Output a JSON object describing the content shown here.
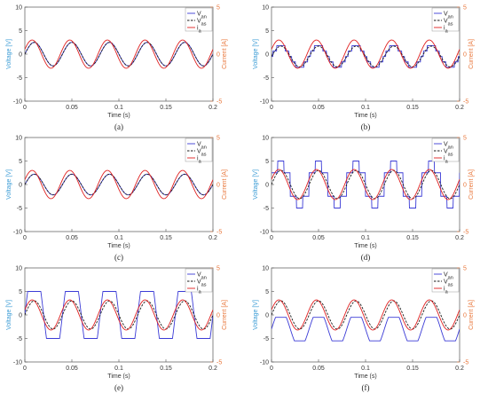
{
  "colors": {
    "voltage_axis": "#3a9bd5",
    "current_axis": "#e8763a",
    "van": "#3b3bd6",
    "vas": "#1a1a1a",
    "ia": "#e02020",
    "frame": "#555555"
  },
  "chart_data": [
    {
      "type": "line",
      "caption": "(a)",
      "xlabel": "Time (s)",
      "ylabel": "Voltage [V]",
      "y2label": "Current [A]",
      "xlim": [
        0,
        0.2
      ],
      "ylim": [
        -10,
        10
      ],
      "y2lim": [
        -5,
        5
      ],
      "xticks": [
        "0",
        "0.05",
        "0.1",
        "0.15",
        "0.2"
      ],
      "yticks": [
        "10",
        "5",
        "0",
        "-5",
        "-10"
      ],
      "y2ticks": [
        "5",
        "0",
        "-5"
      ],
      "legend": [
        "V_an",
        "V_as",
        "i_a"
      ],
      "legend_position": "top-right",
      "series": [
        {
          "name": "V_an",
          "frequency_hz": 25,
          "waveform": "sine",
          "amplitude": 2.5,
          "offset": 0,
          "phase_deg": 0
        },
        {
          "name": "V_as",
          "frequency_hz": 25,
          "waveform": "sine",
          "amplitude": 2.5,
          "offset": 0,
          "phase_deg": 0
        },
        {
          "name": "i_a",
          "axis": "right",
          "frequency_hz": 25,
          "waveform": "sine",
          "amplitude": 1.5,
          "offset": 0,
          "phase_deg": 20
        }
      ]
    },
    {
      "type": "line",
      "caption": "(b)",
      "xlabel": "Time (s)",
      "ylabel": "Voltage [V]",
      "y2label": "Current [A]",
      "xlim": [
        0,
        0.2
      ],
      "ylim": [
        -10,
        10
      ],
      "y2lim": [
        -5,
        5
      ],
      "xticks": [
        "0",
        "0.05",
        "0.1",
        "0.15",
        "0.2"
      ],
      "yticks": [
        "10",
        "5",
        "0",
        "-5",
        "-10"
      ],
      "y2ticks": [
        "5",
        "0",
        "-5"
      ],
      "legend": [
        "V_an",
        "V_as",
        "i_a"
      ],
      "legend_position": "top-right",
      "series": [
        {
          "name": "V_an",
          "frequency_hz": 25,
          "waveform": "stepped",
          "amplitude": 2.3,
          "offset": -0.5,
          "phase_deg": 0
        },
        {
          "name": "V_as",
          "frequency_hz": 25,
          "waveform": "sine",
          "amplitude": 2.2,
          "offset": -0.5,
          "phase_deg": 0
        },
        {
          "name": "i_a",
          "axis": "right",
          "frequency_hz": 25,
          "waveform": "sine",
          "amplitude": 1.5,
          "offset": 0,
          "phase_deg": 20
        }
      ]
    },
    {
      "type": "line",
      "caption": "(c)",
      "xlabel": "Time (s)",
      "ylabel": "Voltage [V]",
      "y2label": "Current [A]",
      "xlim": [
        0,
        0.2
      ],
      "ylim": [
        -10,
        10
      ],
      "y2lim": [
        -5,
        5
      ],
      "xticks": [
        "0",
        "0.05",
        "0.1",
        "0.15",
        "0.2"
      ],
      "yticks": [
        "10",
        "5",
        "0",
        "-5",
        "-10"
      ],
      "y2ticks": [
        "5",
        "0",
        "-5"
      ],
      "legend": [
        "V_an",
        "V_as",
        "i_a"
      ],
      "legend_position": "top-right",
      "series": [
        {
          "name": "V_an",
          "frequency_hz": 25,
          "waveform": "sine",
          "amplitude": 2.2,
          "offset": 0,
          "phase_deg": 0
        },
        {
          "name": "V_as",
          "frequency_hz": 25,
          "waveform": "sine",
          "amplitude": 2.2,
          "offset": 0,
          "phase_deg": 0
        },
        {
          "name": "i_a",
          "axis": "right",
          "frequency_hz": 25,
          "waveform": "sine",
          "amplitude": 1.5,
          "offset": 0,
          "phase_deg": 20
        }
      ]
    },
    {
      "type": "line",
      "caption": "(d)",
      "xlabel": "Time (s)",
      "ylabel": "Voltage [V]",
      "y2label": "Current [A]",
      "xlim": [
        0,
        0.2
      ],
      "ylim": [
        -10,
        10
      ],
      "y2lim": [
        -5,
        5
      ],
      "xticks": [
        "0",
        "0.05",
        "0.1",
        "0.15",
        "0.2"
      ],
      "yticks": [
        "10",
        "5",
        "0",
        "-5",
        "-10"
      ],
      "y2ticks": [
        "5",
        "0",
        "-5"
      ],
      "legend": [
        "V_an",
        "V_as",
        "i_a"
      ],
      "legend_position": "top-right",
      "series": [
        {
          "name": "V_an",
          "frequency_hz": 25,
          "waveform": "sixstep",
          "amplitude": 5,
          "offset": 0,
          "phase_deg": 0
        },
        {
          "name": "V_as",
          "frequency_hz": 25,
          "waveform": "sine",
          "amplitude": 3,
          "offset": 0,
          "phase_deg": 0
        },
        {
          "name": "i_a",
          "axis": "right",
          "frequency_hz": 25,
          "waveform": "sine",
          "amplitude": 1.6,
          "offset": 0,
          "phase_deg": 20
        }
      ]
    },
    {
      "type": "line",
      "caption": "(e)",
      "xlabel": "Time (s)",
      "ylabel": "Voltage [V]",
      "y2label": "Current [A]",
      "xlim": [
        0,
        0.2
      ],
      "ylim": [
        -10,
        10
      ],
      "y2lim": [
        -5,
        5
      ],
      "xticks": [
        "0",
        "0.05",
        "0.1",
        "0.15",
        "0.2"
      ],
      "yticks": [
        "10",
        "5",
        "0",
        "-5",
        "-10"
      ],
      "y2ticks": [
        "5",
        "0",
        "-5"
      ],
      "legend": [
        "V_an",
        "V_as",
        "i_a"
      ],
      "legend_position": "top-right",
      "series": [
        {
          "name": "V_an",
          "frequency_hz": 25,
          "waveform": "square",
          "amplitude": 5,
          "offset": 0,
          "phase_deg": 0
        },
        {
          "name": "V_as",
          "frequency_hz": 25,
          "waveform": "sine",
          "amplitude": 3,
          "offset": 0,
          "phase_deg": 0
        },
        {
          "name": "i_a",
          "axis": "right",
          "frequency_hz": 25,
          "waveform": "sine",
          "amplitude": 1.6,
          "offset": 0,
          "phase_deg": 20
        }
      ]
    },
    {
      "type": "line",
      "caption": "(f)",
      "xlabel": "Time (s)",
      "ylabel": "Voltage [V]",
      "y2label": "Current [A]",
      "xlim": [
        0,
        0.2
      ],
      "ylim": [
        -10,
        10
      ],
      "y2lim": [
        -5,
        5
      ],
      "xticks": [
        "0",
        "0.05",
        "0.1",
        "0.15",
        "0.2"
      ],
      "yticks": [
        "10",
        "5",
        "0",
        "-5",
        "-10"
      ],
      "y2ticks": [
        "5",
        "0",
        "-5"
      ],
      "legend": [
        "V_an",
        "V_as",
        "i_a"
      ],
      "legend_position": "top-right",
      "series": [
        {
          "name": "V_an",
          "frequency_hz": 25,
          "waveform": "clipped",
          "amplitude": 2.5,
          "offset": -3,
          "phase_deg": 0
        },
        {
          "name": "V_as",
          "frequency_hz": 25,
          "waveform": "sine",
          "amplitude": 3,
          "offset": 0,
          "phase_deg": 0
        },
        {
          "name": "i_a",
          "axis": "right",
          "frequency_hz": 25,
          "waveform": "sine",
          "amplitude": 1.6,
          "offset": 0,
          "phase_deg": 20
        }
      ]
    }
  ]
}
